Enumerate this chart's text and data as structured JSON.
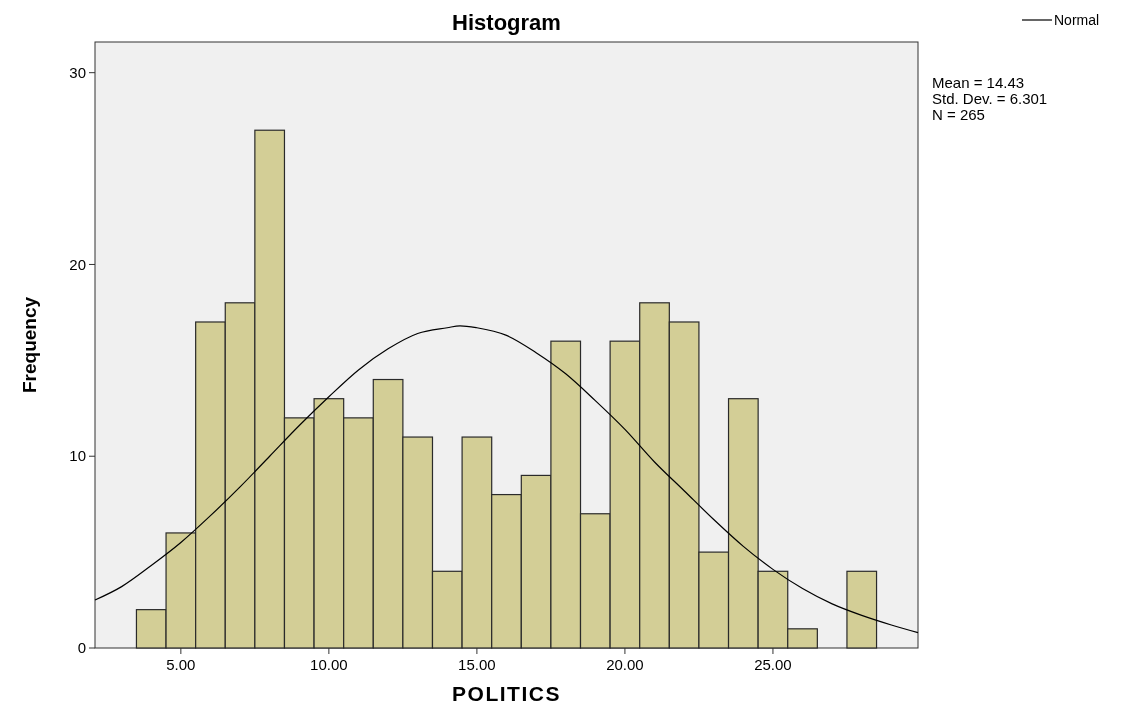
{
  "chart_data": {
    "type": "histogram",
    "title": "Histogram",
    "xlabel": "POLITICS",
    "ylabel": "Frequency",
    "bins": [
      3.5,
      4.5,
      5.5,
      6.5,
      7.5,
      8.5,
      9.5,
      10.5,
      11.5,
      12.5,
      13.5,
      14.5,
      15.5,
      16.5,
      17.5,
      18.5,
      19.5,
      20.5,
      21.5,
      22.5,
      23.5,
      24.5,
      25.5,
      26.5,
      27.5,
      28.5
    ],
    "values": [
      2,
      6,
      17,
      18,
      27,
      12,
      13,
      12,
      14,
      11,
      4,
      11,
      8,
      9,
      16,
      7,
      16,
      18,
      17,
      5,
      13,
      4,
      1,
      0,
      4
    ],
    "color": "#d3ce96",
    "series": [
      {
        "name": "Normal",
        "type": "line",
        "color": "#000000",
        "x": [
          2.1,
          3,
          4,
          5,
          6,
          7,
          8,
          9,
          10,
          11,
          12,
          13,
          14,
          14.43,
          15,
          16,
          17,
          18,
          19,
          20,
          21,
          22,
          23,
          24,
          25,
          26,
          27,
          28,
          29,
          29.9
        ],
        "values": [
          2.5,
          3.2,
          4.3,
          5.5,
          6.9,
          8.4,
          10.0,
          11.6,
          13.1,
          14.5,
          15.6,
          16.4,
          16.7,
          16.8,
          16.7,
          16.3,
          15.4,
          14.3,
          12.9,
          11.4,
          9.7,
          8.2,
          6.7,
          5.3,
          4.1,
          3.1,
          2.3,
          1.7,
          1.2,
          0.8
        ]
      }
    ],
    "xlim": [
      2.1,
      29.9
    ],
    "ylim": [
      0,
      31.6
    ],
    "xticks": [
      {
        "value": 5,
        "label": "5.00"
      },
      {
        "value": 10,
        "label": "10.00"
      },
      {
        "value": 15,
        "label": "15.00"
      },
      {
        "value": 20,
        "label": "20.00"
      },
      {
        "value": 25,
        "label": "25.00"
      }
    ],
    "yticks": [
      0,
      10,
      20,
      30
    ],
    "grid": false,
    "legend": "top right",
    "annotations": [
      "Mean = 14.43",
      "Std. Dev. = 6.301",
      "N = 265"
    ]
  }
}
